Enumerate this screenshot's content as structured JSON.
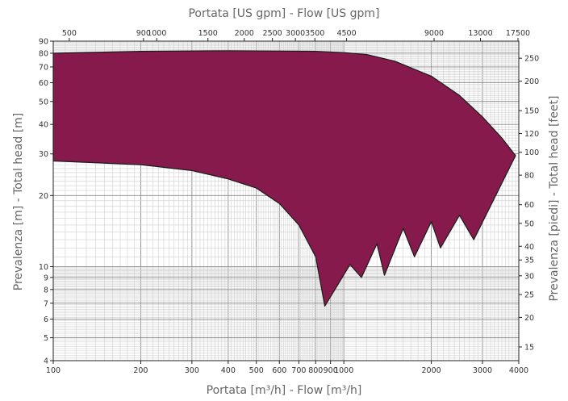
{
  "chart_data": {
    "type": "area",
    "title_top": "Portata [US gpm] - Flow [US gpm]",
    "xlabel": "Portata [m³/h] - Flow [m³/h]",
    "ylabel_left": "Prevalenza [m] - Total head [m]",
    "ylabel_right": "Prevalenza [piedi] - Total head [feet]",
    "x_scale": "log",
    "y_scale": "log",
    "xlim": [
      100,
      4000
    ],
    "ylim": [
      4,
      90
    ],
    "grid": true,
    "x_ticks": [
      100,
      200,
      300,
      400,
      500,
      600,
      700,
      800,
      900,
      1000,
      2000,
      3000,
      4000
    ],
    "x_tick_labels": [
      "100",
      "200",
      "300",
      "400",
      "500",
      "600",
      "700",
      "800",
      "900",
      "1000",
      "2000",
      "3000",
      "4000"
    ],
    "y_ticks": [
      4,
      5,
      6,
      7,
      8,
      9,
      10,
      20,
      30,
      40,
      50,
      60,
      70,
      80,
      90
    ],
    "y_tick_labels": [
      "4",
      "5",
      "6",
      "7",
      "8",
      "9",
      "10",
      "20",
      "30",
      "40",
      "50",
      "60",
      "70",
      "80",
      "90"
    ],
    "top_ticks_usgpm": [
      500,
      900,
      1000,
      1500,
      2000,
      2500,
      3000,
      3500,
      4500,
      9000,
      13000,
      17500
    ],
    "top_tick_labels": [
      "500",
      "900",
      "1000",
      "1500",
      "2000",
      "2500",
      "3000",
      "3500",
      "4500",
      "9000",
      "13000",
      "17500"
    ],
    "right_ticks_feet": [
      15,
      20,
      25,
      30,
      35,
      40,
      50,
      60,
      80,
      100,
      120,
      150,
      200,
      250
    ],
    "right_tick_labels": [
      "15",
      "20",
      "25",
      "30",
      "35",
      "40",
      "50",
      "60",
      "80",
      "100",
      "120",
      "150",
      "200",
      "250"
    ],
    "series": [
      {
        "fill": "#861A4C",
        "upper": [
          [
            100,
            80
          ],
          [
            200,
            81.5
          ],
          [
            400,
            82
          ],
          [
            800,
            81.5
          ],
          [
            1000,
            80.5
          ],
          [
            1200,
            79
          ],
          [
            1500,
            74
          ],
          [
            2000,
            64
          ],
          [
            2500,
            53
          ],
          [
            3000,
            43
          ],
          [
            3500,
            35
          ],
          [
            3900,
            29.5
          ]
        ],
        "lower": [
          [
            100,
            28
          ],
          [
            200,
            27
          ],
          [
            300,
            25.5
          ],
          [
            400,
            23.5
          ],
          [
            500,
            21.5
          ],
          [
            600,
            18.5
          ],
          [
            700,
            15
          ],
          [
            800,
            11
          ],
          [
            860,
            6.8
          ],
          [
            1050,
            10.2
          ],
          [
            1150,
            9
          ],
          [
            1300,
            12.5
          ],
          [
            1380,
            9.2
          ],
          [
            1600,
            14.5
          ],
          [
            1750,
            11
          ],
          [
            2000,
            15.5
          ],
          [
            2150,
            12
          ],
          [
            2500,
            16.5
          ],
          [
            2800,
            13
          ],
          [
            3900,
            29.5
          ]
        ]
      }
    ]
  }
}
